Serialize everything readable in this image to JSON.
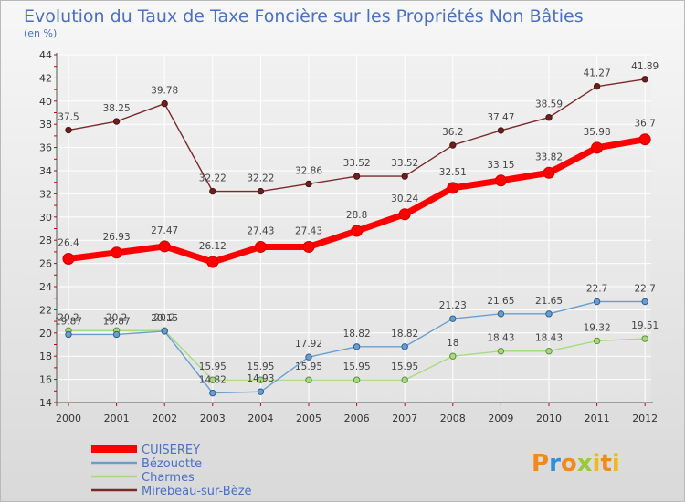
{
  "chart_data": {
    "type": "line",
    "title": "Evolution du Taux de Taxe Foncière sur les Propriétés Non Bâties",
    "subtitle": "(en %)",
    "xlabel": "",
    "ylabel": "",
    "x": [
      "2000",
      "2001",
      "2002",
      "2003",
      "2004",
      "2005",
      "2006",
      "2007",
      "2008",
      "2009",
      "2010",
      "2011",
      "2012"
    ],
    "yticks": [
      14,
      16,
      18,
      20,
      22,
      24,
      26,
      28,
      30,
      32,
      34,
      36,
      38,
      40,
      42,
      44
    ],
    "ylim": [
      14,
      44
    ],
    "grid": true,
    "legend_position": "bottom-left",
    "series": [
      {
        "name": "CUISEREY",
        "color": "#ff0000",
        "values": [
          26.4,
          26.93,
          27.47,
          26.12,
          27.43,
          27.43,
          28.8,
          30.24,
          32.51,
          33.15,
          33.82,
          35.98,
          36.7
        ],
        "labels": [
          "26.4",
          "26.93",
          "27.47",
          "26.12",
          "27.43",
          "27.43",
          "28.8",
          "30.24",
          "32.51",
          "33.15",
          "33.82",
          "35.98",
          "36.7"
        ]
      },
      {
        "name": "Bézouotte",
        "color": "#6a9ed1",
        "values": [
          19.87,
          19.87,
          20.15,
          14.82,
          14.93,
          17.92,
          18.82,
          18.82,
          21.23,
          21.65,
          21.65,
          22.7,
          22.7
        ],
        "labels": [
          "19.87",
          "19.87",
          "20.15",
          "14.82",
          "14.93",
          "17.92",
          "18.82",
          "18.82",
          "21.23",
          "21.65",
          "21.65",
          "22.7",
          "22.7"
        ]
      },
      {
        "name": "Charmes",
        "color": "#a6db80",
        "values": [
          20.2,
          20.2,
          20.2,
          15.95,
          15.95,
          15.95,
          15.95,
          15.95,
          18,
          18.43,
          18.43,
          19.32,
          19.51
        ],
        "labels": [
          "20.2",
          "20.2",
          "20.2",
          "15.95",
          "15.95",
          "15.95",
          "15.95",
          "15.95",
          "18",
          "18.43",
          "18.43",
          "19.32",
          "19.51"
        ]
      },
      {
        "name": "Mirebeau-sur-Bèze",
        "color": "#7a2a2a",
        "values": [
          37.5,
          38.25,
          39.78,
          32.22,
          32.22,
          32.86,
          33.52,
          33.52,
          36.2,
          37.47,
          38.59,
          41.27,
          41.89
        ],
        "labels": [
          "37.5",
          "38.25",
          "39.78",
          "32.22",
          "32.22",
          "32.86",
          "33.52",
          "33.52",
          "36.2",
          "37.47",
          "38.59",
          "41.27",
          "41.89"
        ]
      }
    ]
  },
  "logo": {
    "text": "Proxiti",
    "colors": [
      "#f08a1c",
      "#2f8fd8",
      "#9bc83c",
      "#f0b81c"
    ]
  }
}
